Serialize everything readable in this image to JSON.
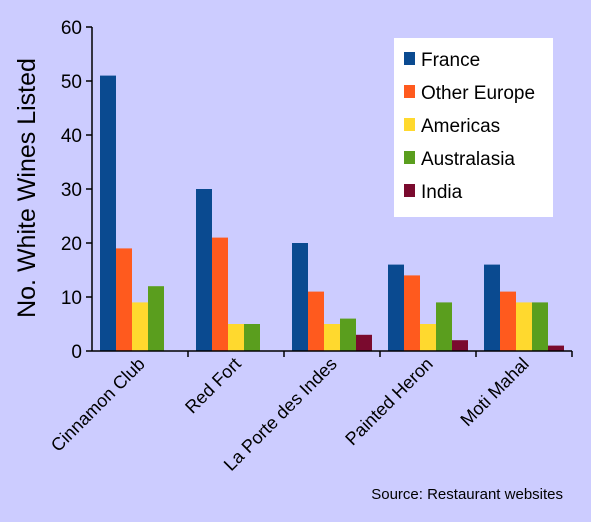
{
  "chart_data": {
    "type": "bar",
    "ylabel": "No. White Wines Listed",
    "xlabel": "",
    "ylim": [
      0,
      60
    ],
    "yticks": [
      0,
      10,
      20,
      30,
      40,
      50,
      60
    ],
    "categories": [
      "Cinnamon Club",
      "Red Fort",
      "La Porte des Indes",
      "Painted Heron",
      "Moti Mahal"
    ],
    "series": [
      {
        "name": "France",
        "color": "#0a4a90",
        "values": [
          51,
          30,
          20,
          16,
          16
        ]
      },
      {
        "name": "Other Europe",
        "color": "#ff5a1e",
        "values": [
          19,
          21,
          11,
          14,
          11
        ]
      },
      {
        "name": "Americas",
        "color": "#ffd92e",
        "values": [
          9,
          5,
          5,
          5,
          9
        ]
      },
      {
        "name": "Australasia",
        "color": "#5a9e1e",
        "values": [
          12,
          5,
          6,
          9,
          9
        ]
      },
      {
        "name": "India",
        "color": "#7a0a2e",
        "values": [
          0,
          0,
          3,
          2,
          1
        ]
      }
    ],
    "grid": false,
    "legend_position": "top-right",
    "source": "Source: Restaurant websites"
  }
}
